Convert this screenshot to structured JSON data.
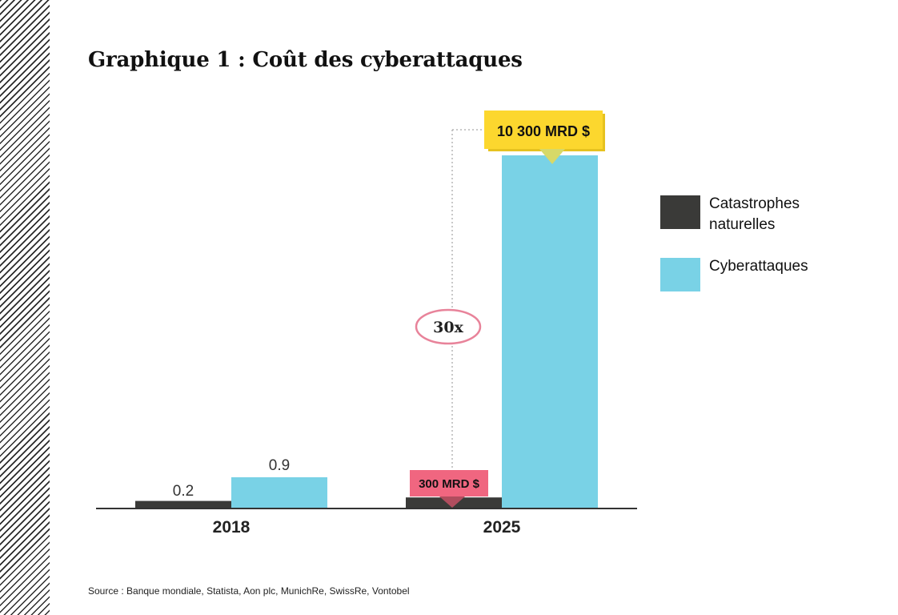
{
  "title": "Graphique 1 : Coût des cyberattaques",
  "source": "Source : Banque mondiale, Statista, Aon plc, MunichRe, SwissRe, Vontobel",
  "colors": {
    "natural": "#3a3a38",
    "cyber": "#79d2e6",
    "yellow": "#fcd72e",
    "pink": "#f06680",
    "axis": "#333333"
  },
  "legend": [
    {
      "label": "Catastrophes naturelles",
      "color": "#3a3a38"
    },
    {
      "label": "Cyberattaques",
      "color": "#79d2e6"
    }
  ],
  "chart_data": {
    "type": "bar",
    "categories": [
      "2018",
      "2025"
    ],
    "series": [
      {
        "name": "Catastrophes naturelles",
        "values": [
          0.2,
          300
        ]
      },
      {
        "name": "Cyberattaques",
        "values": [
          0.9,
          10300
        ]
      }
    ],
    "data_labels": {
      "2018": [
        "0.2",
        "0.9"
      ]
    },
    "annotations": {
      "natural_2025": "300 MRD $",
      "cyber_2025": "10 300 MRD $",
      "ratio": "30x"
    }
  }
}
